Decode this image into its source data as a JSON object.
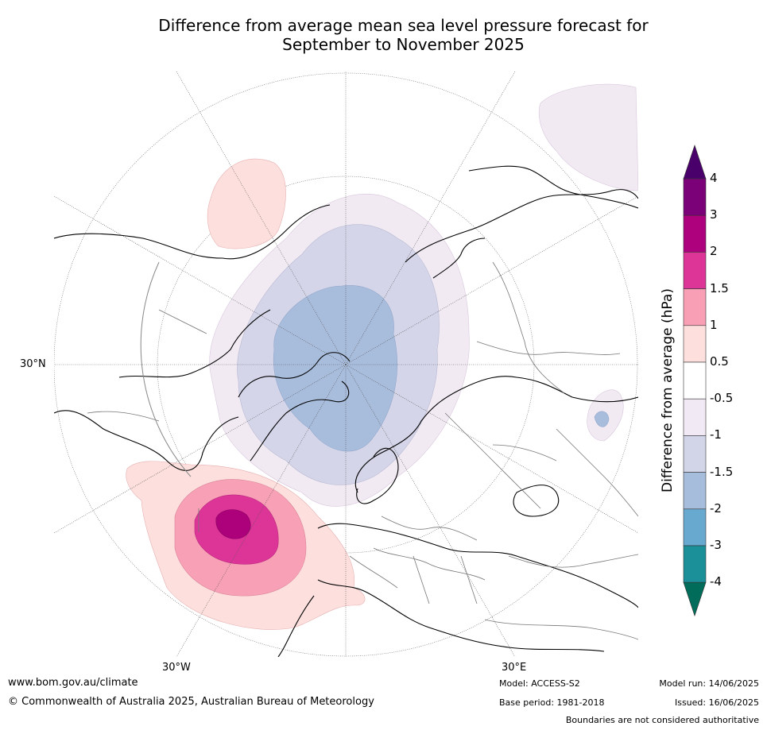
{
  "header": {
    "title_line1": "Difference from average mean sea level pressure forecast for",
    "title_line2": "September to November 2025"
  },
  "map": {
    "projection": "north polar",
    "lat_labels": [
      "30°N"
    ],
    "lon_labels": [
      "30°W",
      "30°E"
    ],
    "colors": {
      "coast": "#000000",
      "borders": "#777777",
      "graticule": "#555555",
      "neg_1": "#f1eaf3",
      "neg_2": "#d4d5e8",
      "neg_3": "#a8bcdc",
      "pos_1": "#fde0de",
      "pos_2": "#f8a0b6",
      "pos_3": "#dc3597",
      "pos_4": "#ad007b"
    }
  },
  "colorbar": {
    "title": "Difference from average (hPa)",
    "tick_labels": [
      "4",
      "3",
      "2",
      "1.5",
      "1",
      "0.5",
      "-0.5",
      "-1",
      "-1.5",
      "-2",
      "-3",
      "-4"
    ],
    "colors": [
      "#4a006a",
      "#7a0177",
      "#ae017e",
      "#dd3497",
      "#f89fb5",
      "#fde0dd",
      "#ffffff",
      "#f1e9f3",
      "#d2d4e8",
      "#a6bddb",
      "#67a9cf",
      "#1c9099",
      "#016c59"
    ]
  },
  "footer": {
    "website": "www.bom.gov.au/climate",
    "copyright": "© Commonwealth of Australia 2025, Australian Bureau of Meteorology",
    "model": "Model: ACCESS-S2",
    "base_period": "Base period: 1981-2018",
    "model_run": "Model run: 14/06/2025",
    "issued": "Issued: 16/06/2025",
    "disclaimer": "Boundaries are not considered authoritative"
  }
}
